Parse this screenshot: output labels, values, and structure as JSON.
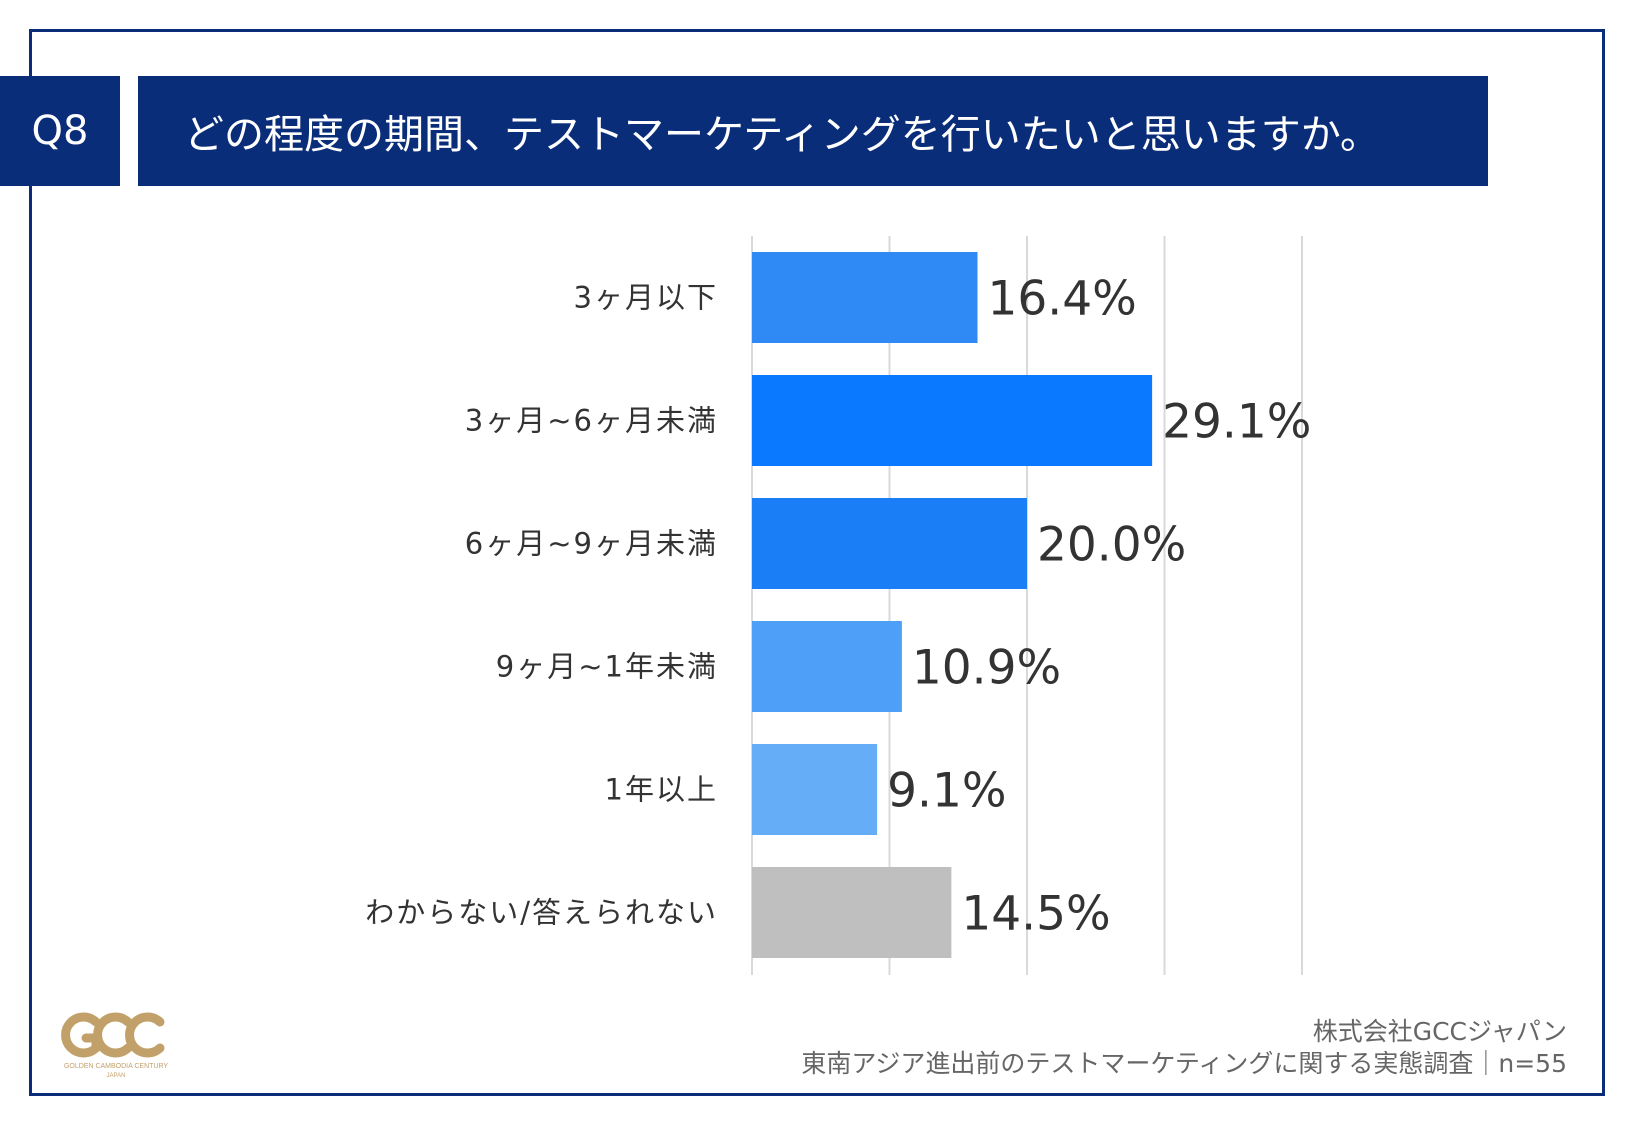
{
  "header": {
    "question_no": "Q8",
    "title": "どの程度の期間、テストマーケティングを行いたいと思いますか。"
  },
  "chart_data": {
    "type": "bar",
    "orientation": "horizontal",
    "categories": [
      "3ヶ月以下",
      "3ヶ月~6ヶ月未満",
      "6ヶ月~9ヶ月未満",
      "9ヶ月~1年未満",
      "1年以上",
      "わからない/答えられない"
    ],
    "values": [
      16.4,
      29.1,
      20.0,
      10.9,
      9.1,
      14.5
    ],
    "value_labels": [
      "16.4%",
      "29.1%",
      "20.0%",
      "10.9%",
      "9.1%",
      "14.5%"
    ],
    "bar_colors": [
      "#2f8af5",
      "#0a78ff",
      "#1a7ff7",
      "#4d9ff7",
      "#66adf8",
      "#bfbfbf"
    ],
    "xlim": [
      0,
      40
    ],
    "grid": true,
    "unit": "%"
  },
  "footer": {
    "company": "株式会社GCCジャパン",
    "source": "東南アジア進出前のテストマーケティングに関する実態調査｜n=55"
  },
  "logo": {
    "mark": "GCC",
    "tagline": "GOLDEN CAMBODIA CENTURY",
    "sub": "JAPAN",
    "color": "#c2a06a"
  },
  "colors": {
    "brand_navy": "#0a2d7a",
    "grid": "#d9d9d9"
  }
}
